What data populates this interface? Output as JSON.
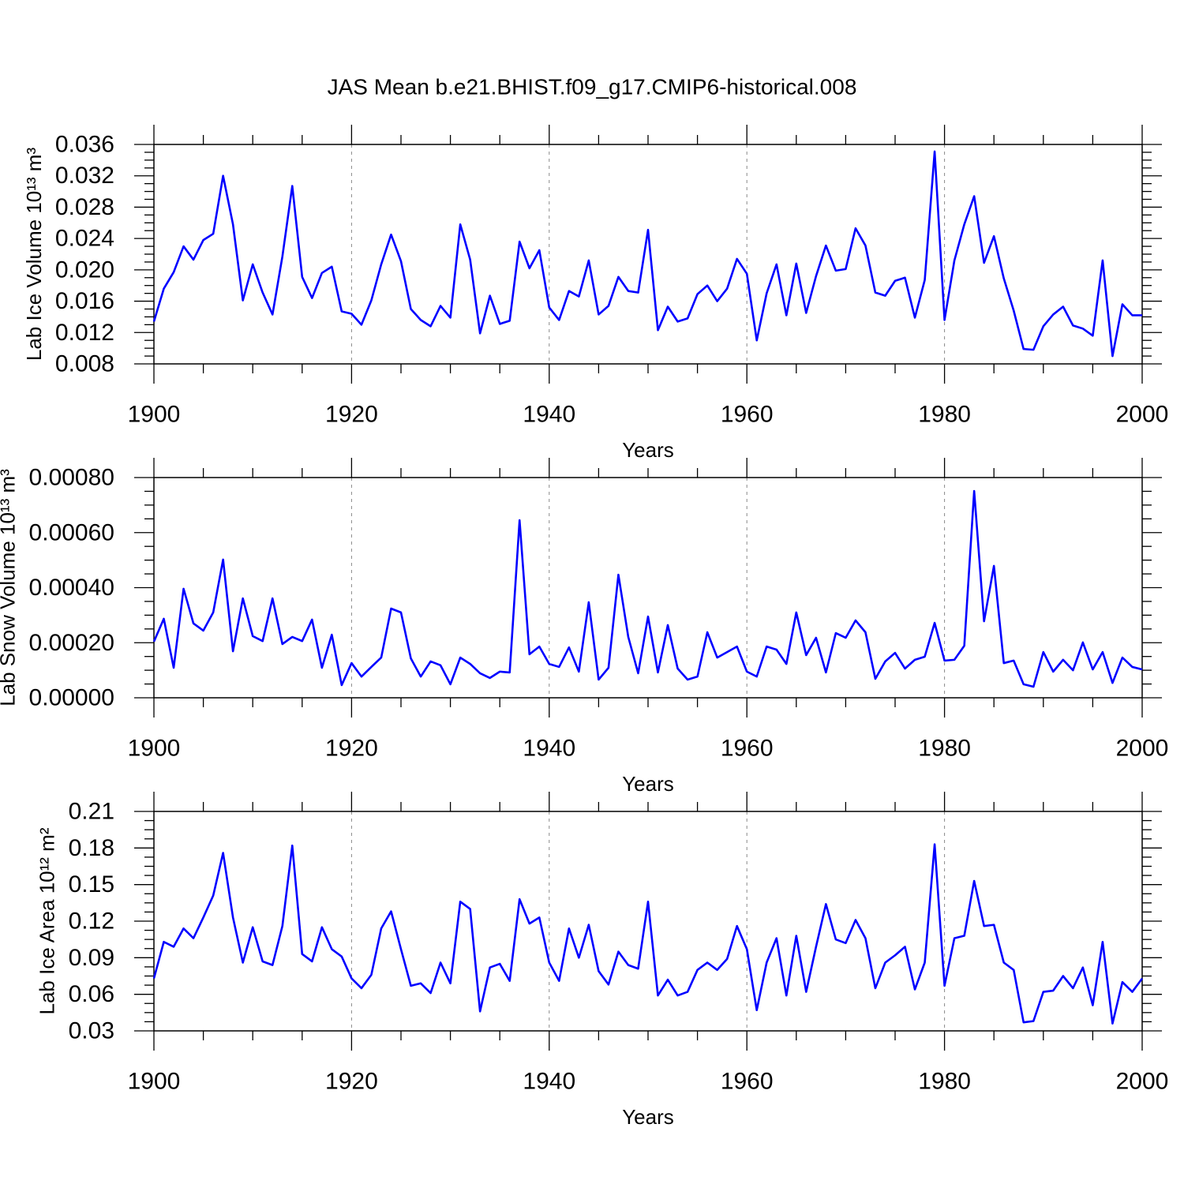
{
  "title": "JAS Mean b.e21.BHIST.f09_g17.CMIP6-historical.008",
  "chart_data": [
    {
      "type": "line",
      "ylabel": "Lab Ice Volume 10¹³ m³",
      "xlabel": "Years",
      "x": [
        1900,
        1901,
        1902,
        1903,
        1904,
        1905,
        1906,
        1907,
        1908,
        1909,
        1910,
        1911,
        1912,
        1913,
        1914,
        1915,
        1916,
        1917,
        1918,
        1919,
        1920,
        1921,
        1922,
        1923,
        1924,
        1925,
        1926,
        1927,
        1928,
        1929,
        1930,
        1931,
        1932,
        1933,
        1934,
        1935,
        1936,
        1937,
        1938,
        1939,
        1940,
        1941,
        1942,
        1943,
        1944,
        1945,
        1946,
        1947,
        1948,
        1949,
        1950,
        1951,
        1952,
        1953,
        1954,
        1955,
        1956,
        1957,
        1958,
        1959,
        1960,
        1961,
        1962,
        1963,
        1964,
        1965,
        1966,
        1967,
        1968,
        1969,
        1970,
        1971,
        1972,
        1973,
        1974,
        1975,
        1976,
        1977,
        1978,
        1979,
        1980,
        1981,
        1982,
        1983,
        1984,
        1985,
        1986,
        1987,
        1988,
        1989,
        1990,
        1991,
        1992,
        1993,
        1994,
        1995,
        1996,
        1997,
        1998,
        1999,
        2000
      ],
      "series": [
        {
          "color": "#0000ff",
          "values": [
            0.0134,
            0.0176,
            0.0197,
            0.023,
            0.0213,
            0.0238,
            0.0246,
            0.032,
            0.0258,
            0.0161,
            0.0207,
            0.0171,
            0.0143,
            0.0217,
            0.0307,
            0.0191,
            0.0164,
            0.0196,
            0.0204,
            0.0147,
            0.0144,
            0.013,
            0.0161,
            0.0207,
            0.0245,
            0.0211,
            0.015,
            0.0136,
            0.0128,
            0.0154,
            0.0139,
            0.0258,
            0.0213,
            0.0119,
            0.0167,
            0.0131,
            0.0135,
            0.0236,
            0.0202,
            0.0225,
            0.0152,
            0.0136,
            0.0173,
            0.0166,
            0.0212,
            0.0143,
            0.0154,
            0.0191,
            0.0173,
            0.0171,
            0.0251,
            0.0123,
            0.0153,
            0.0134,
            0.0138,
            0.0169,
            0.018,
            0.016,
            0.0176,
            0.0214,
            0.0195,
            0.011,
            0.017,
            0.0207,
            0.0142,
            0.0208,
            0.0145,
            0.0192,
            0.0231,
            0.0199,
            0.0201,
            0.0253,
            0.0231,
            0.0171,
            0.0167,
            0.0186,
            0.019,
            0.0139,
            0.0187,
            0.0351,
            0.0136,
            0.0212,
            0.0258,
            0.0294,
            0.0209,
            0.0243,
            0.0189,
            0.0148,
            0.0099,
            0.0098,
            0.0128,
            0.0143,
            0.0153,
            0.0129,
            0.0125,
            0.0116,
            0.0212,
            0.009,
            0.0156,
            0.0142,
            0.0142
          ]
        }
      ],
      "xlim": [
        1900,
        2000
      ],
      "xticks": [
        1900,
        1920,
        1940,
        1960,
        1980,
        2000
      ],
      "ylim": [
        0.008,
        0.036
      ],
      "yticks": [
        0.008,
        0.012,
        0.016,
        {
          "value": 0.02,
          "label": "0.020"
        },
        0.024,
        0.028,
        0.032,
        0.036
      ],
      "grid": "x-dashed"
    },
    {
      "type": "line",
      "ylabel": "Lab Snow Volume 10¹³ m³",
      "xlabel": "Years",
      "x": [
        1900,
        1901,
        1902,
        1903,
        1904,
        1905,
        1906,
        1907,
        1908,
        1909,
        1910,
        1911,
        1912,
        1913,
        1914,
        1915,
        1916,
        1917,
        1918,
        1919,
        1920,
        1921,
        1922,
        1923,
        1924,
        1925,
        1926,
        1927,
        1928,
        1929,
        1930,
        1931,
        1932,
        1933,
        1934,
        1935,
        1936,
        1937,
        1938,
        1939,
        1940,
        1941,
        1942,
        1943,
        1944,
        1945,
        1946,
        1947,
        1948,
        1949,
        1950,
        1951,
        1952,
        1953,
        1954,
        1955,
        1956,
        1957,
        1958,
        1959,
        1960,
        1961,
        1962,
        1963,
        1964,
        1965,
        1966,
        1967,
        1968,
        1969,
        1970,
        1971,
        1972,
        1973,
        1974,
        1975,
        1976,
        1977,
        1978,
        1979,
        1980,
        1981,
        1982,
        1983,
        1984,
        1985,
        1986,
        1987,
        1988,
        1989,
        1990,
        1991,
        1992,
        1993,
        1994,
        1995,
        1996,
        1997,
        1998,
        1999,
        2000
      ],
      "series": [
        {
          "color": "#0000ff",
          "values": [
            0.000204,
            0.000287,
            0.000109,
            0.000396,
            0.00027,
            0.000244,
            0.00031,
            0.000502,
            0.000169,
            0.000361,
            0.000224,
            0.000206,
            0.000361,
            0.000195,
            0.000221,
            0.000206,
            0.000284,
            0.000109,
            0.000229,
            4.6e-05,
            0.000126,
            7.7e-05,
            0.000112,
            0.000146,
            0.000324,
            0.00031,
            0.000143,
            7.7e-05,
            0.000132,
            0.000118,
            4.9e-05,
            0.000146,
            0.000123,
            8.9e-05,
            7.2e-05,
            9.5e-05,
            9.2e-05,
            0.000645,
            0.000158,
            0.000186,
            0.000123,
            0.000112,
            0.000183,
            9.5e-05,
            0.000347,
            6.6e-05,
            0.000109,
            0.000447,
            0.000221,
            8.9e-05,
            0.000295,
            9.2e-05,
            0.000264,
            0.000106,
            6.6e-05,
            7.7e-05,
            0.000238,
            0.000146,
            0.000166,
            0.000186,
            9.5e-05,
            7.7e-05,
            0.000186,
            0.000175,
            0.000123,
            0.00031,
            0.000155,
            0.000218,
            9.2e-05,
            0.000235,
            0.000218,
            0.000281,
            0.000238,
            6.9e-05,
            0.000132,
            0.000163,
            0.000106,
            0.000138,
            0.000149,
            0.000272,
            0.000135,
            0.000138,
            0.000189,
            0.000751,
            0.000278,
            0.000479,
            0.000126,
            0.000135,
            4.9e-05,
            4e-05,
            0.000166,
            9.5e-05,
            0.000138,
            0.0001,
            0.000201,
            0.000103,
            0.000166,
            5.4e-05,
            0.000146,
            0.000112,
            0.000103
          ]
        }
      ],
      "xlim": [
        1900,
        2000
      ],
      "xticks": [
        1900,
        1920,
        1940,
        1960,
        1980,
        2000
      ],
      "ylim": [
        0,
        0.0008
      ],
      "yticks": [
        {
          "value": 0,
          "label": "0.00000"
        },
        {
          "value": 0.0002,
          "label": "0.00020"
        },
        {
          "value": 0.0004,
          "label": "0.00040"
        },
        {
          "value": 0.0006,
          "label": "0.00060"
        },
        {
          "value": 0.0008,
          "label": "0.00080"
        }
      ],
      "grid": "x-dashed"
    },
    {
      "type": "line",
      "ylabel": "Lab Ice Area 10¹² m²",
      "xlabel": "Years",
      "x": [
        1900,
        1901,
        1902,
        1903,
        1904,
        1905,
        1906,
        1907,
        1908,
        1909,
        1910,
        1911,
        1912,
        1913,
        1914,
        1915,
        1916,
        1917,
        1918,
        1919,
        1920,
        1921,
        1922,
        1923,
        1924,
        1925,
        1926,
        1927,
        1928,
        1929,
        1930,
        1931,
        1932,
        1933,
        1934,
        1935,
        1936,
        1937,
        1938,
        1939,
        1940,
        1941,
        1942,
        1943,
        1944,
        1945,
        1946,
        1947,
        1948,
        1949,
        1950,
        1951,
        1952,
        1953,
        1954,
        1955,
        1956,
        1957,
        1958,
        1959,
        1960,
        1961,
        1962,
        1963,
        1964,
        1965,
        1966,
        1967,
        1968,
        1969,
        1970,
        1971,
        1972,
        1973,
        1974,
        1975,
        1976,
        1977,
        1978,
        1979,
        1980,
        1981,
        1982,
        1983,
        1984,
        1985,
        1986,
        1987,
        1988,
        1989,
        1990,
        1991,
        1992,
        1993,
        1994,
        1995,
        1996,
        1997,
        1998,
        1999,
        2000
      ],
      "series": [
        {
          "color": "#0000ff",
          "values": [
            0.073,
            0.103,
            0.099,
            0.114,
            0.106,
            0.123,
            0.141,
            0.176,
            0.123,
            0.086,
            0.115,
            0.087,
            0.084,
            0.116,
            0.182,
            0.093,
            0.087,
            0.115,
            0.097,
            0.091,
            0.073,
            0.065,
            0.076,
            0.114,
            0.128,
            0.097,
            0.067,
            0.069,
            0.061,
            0.086,
            0.069,
            0.136,
            0.13,
            0.046,
            0.082,
            0.085,
            0.071,
            0.138,
            0.118,
            0.123,
            0.086,
            0.071,
            0.114,
            0.09,
            0.117,
            0.079,
            0.068,
            0.095,
            0.084,
            0.081,
            0.136,
            0.059,
            0.072,
            0.059,
            0.062,
            0.08,
            0.086,
            0.08,
            0.089,
            0.116,
            0.097,
            0.047,
            0.086,
            0.106,
            0.059,
            0.108,
            0.062,
            0.099,
            0.134,
            0.105,
            0.102,
            0.121,
            0.106,
            0.065,
            0.086,
            0.092,
            0.099,
            0.064,
            0.086,
            0.183,
            0.067,
            0.106,
            0.108,
            0.153,
            0.116,
            0.117,
            0.086,
            0.08,
            0.037,
            0.038,
            0.062,
            0.063,
            0.075,
            0.065,
            0.082,
            0.051,
            0.103,
            0.036,
            0.07,
            0.062,
            0.073
          ]
        }
      ],
      "xlim": [
        1900,
        2000
      ],
      "xticks": [
        1900,
        1920,
        1940,
        1960,
        1980,
        2000
      ],
      "ylim": [
        0.03,
        0.21
      ],
      "yticks": [
        0.03,
        0.06,
        0.09,
        0.12,
        0.15,
        0.18,
        0.21
      ],
      "grid": "x-dashed"
    }
  ]
}
